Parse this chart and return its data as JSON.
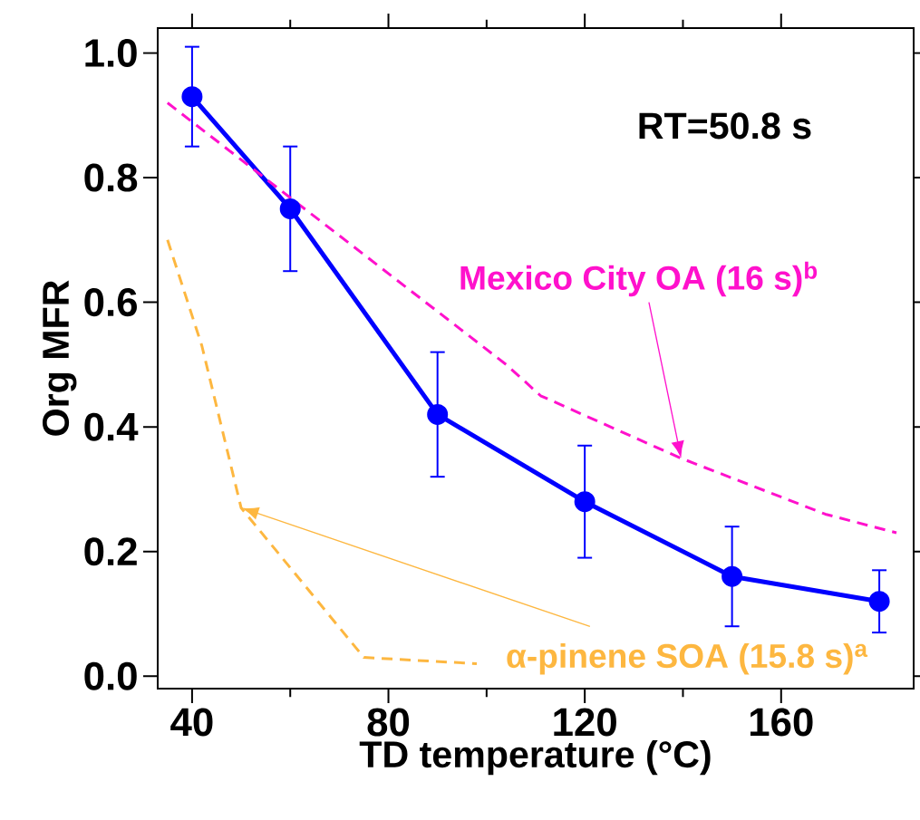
{
  "chart_data": {
    "type": "line",
    "xlabel": "TD temperature (°C)",
    "ylabel": "Org MFR",
    "xlim": [
      33,
      187
    ],
    "ylim": [
      -0.02,
      1.04
    ],
    "xticks": [
      {
        "value": 40,
        "label": "40"
      },
      {
        "value": 80,
        "label": "80"
      },
      {
        "value": 120,
        "label": "120"
      },
      {
        "value": 160,
        "label": "160"
      }
    ],
    "yticks": [
      {
        "value": 0,
        "label": "0.0"
      },
      {
        "value": 0.2,
        "label": "0.2"
      },
      {
        "value": 0.4,
        "label": "0.4"
      },
      {
        "value": 0.6,
        "label": "0.6"
      },
      {
        "value": 0.8,
        "label": "0.8"
      },
      {
        "value": 1,
        "label": "1.0"
      }
    ],
    "grid": false,
    "annotations": [
      "RT=50.8 s"
    ],
    "series": [
      {
        "color": "#0000ff",
        "marker": "circle",
        "line_style": "solid",
        "x": [
          40,
          60,
          90,
          120,
          150,
          180
        ],
        "values": [
          0.93,
          0.75,
          0.42,
          0.28,
          0.16,
          0.12
        ],
        "errors": [
          [
            0.85,
            1.01
          ],
          [
            0.65,
            0.85
          ],
          [
            0.32,
            0.52
          ],
          [
            0.19,
            0.37
          ],
          [
            0.08,
            0.24
          ],
          [
            0.07,
            0.17
          ]
        ]
      },
      {
        "name": "Mexico City OA (16 s)$^{b}$",
        "color": "#ff11cc",
        "marker": "none",
        "line_style": "dashed",
        "x": [
          35,
          104,
          111,
          139.5,
          169,
          183.5
        ],
        "values": [
          0.92,
          0.5,
          0.45,
          0.35,
          0.26,
          0.23
        ]
      },
      {
        "name": "α-pinene SOA (15.8 s)$^{a}$",
        "color": "#fdb740",
        "marker": "none",
        "line_style": "dashed",
        "x": [
          35,
          42,
          50,
          75,
          98
        ],
        "values": [
          0.7,
          0.53,
          0.27,
          0.03,
          0.02
        ]
      }
    ]
  }
}
